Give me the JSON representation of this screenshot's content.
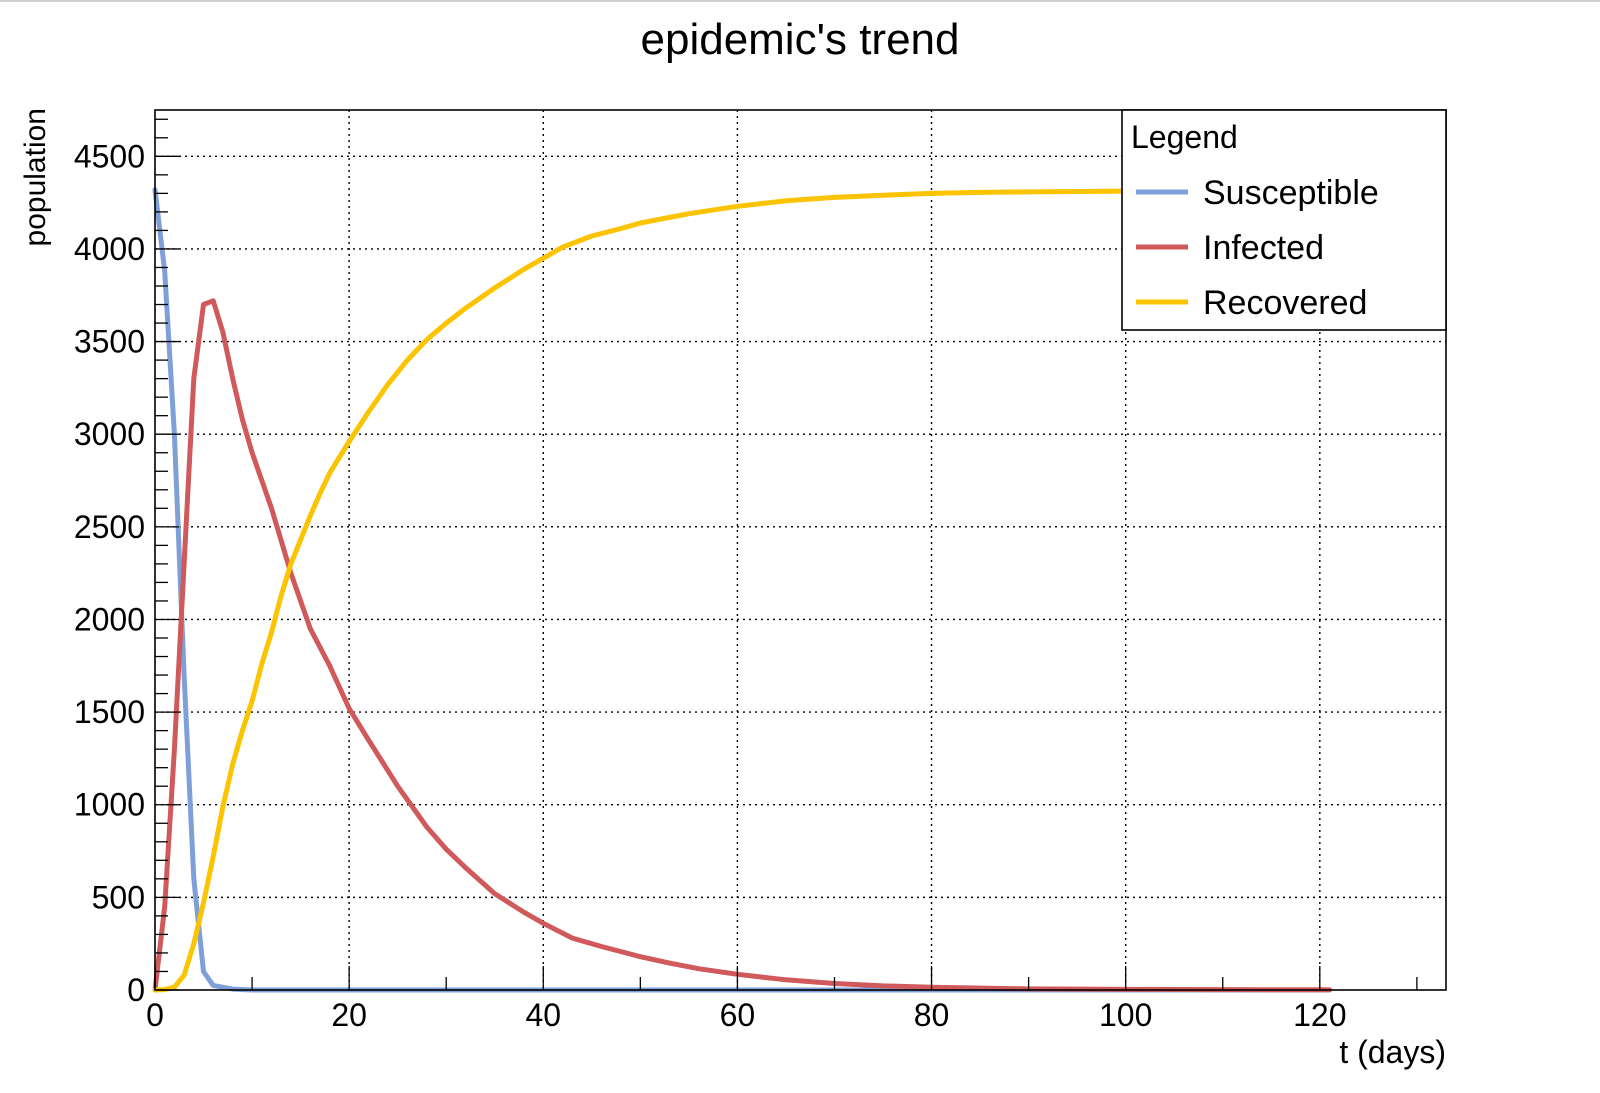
{
  "chart_data": {
    "type": "line",
    "title": "epidemic's trend",
    "xlabel": "t (days)",
    "ylabel": "population",
    "xlim": [
      0,
      133
    ],
    "ylim": [
      0,
      4750
    ],
    "xticks": [
      0,
      20,
      40,
      60,
      80,
      100,
      120
    ],
    "xtick_labels": [
      "0",
      "20",
      "40",
      "60",
      "80",
      "100",
      "120"
    ],
    "yticks": [
      0,
      500,
      1000,
      1500,
      2000,
      2500,
      3000,
      3500,
      4000,
      4500
    ],
    "ytick_labels": [
      "0",
      "500",
      "1000",
      "1500",
      "2000",
      "2500",
      "3000",
      "3500",
      "4000",
      "4500"
    ],
    "grid": true,
    "legend": {
      "title": "Legend",
      "position": "top-right"
    },
    "series": [
      {
        "name": "Susceptible",
        "color": "#7f9fd9",
        "points": [
          [
            0,
            4320
          ],
          [
            1,
            3880
          ],
          [
            2,
            3000
          ],
          [
            3,
            1700
          ],
          [
            4,
            600
          ],
          [
            5,
            100
          ],
          [
            6,
            25
          ],
          [
            8,
            5
          ],
          [
            10,
            0
          ],
          [
            20,
            0
          ],
          [
            40,
            0
          ],
          [
            60,
            0
          ],
          [
            80,
            0
          ],
          [
            100,
            0
          ],
          [
            121,
            0
          ]
        ]
      },
      {
        "name": "Infected",
        "color": "#d0595b",
        "points": [
          [
            0,
            0
          ],
          [
            1,
            450
          ],
          [
            2,
            1300
          ],
          [
            3,
            2300
          ],
          [
            4,
            3300
          ],
          [
            5,
            3700
          ],
          [
            6,
            3720
          ],
          [
            7,
            3550
          ],
          [
            8,
            3300
          ],
          [
            9,
            3080
          ],
          [
            10,
            2900
          ],
          [
            12,
            2600
          ],
          [
            14,
            2250
          ],
          [
            16,
            1950
          ],
          [
            18,
            1750
          ],
          [
            20,
            1520
          ],
          [
            22,
            1350
          ],
          [
            25,
            1100
          ],
          [
            28,
            880
          ],
          [
            30,
            760
          ],
          [
            32,
            660
          ],
          [
            35,
            520
          ],
          [
            38,
            420
          ],
          [
            40,
            360
          ],
          [
            43,
            280
          ],
          [
            46,
            235
          ],
          [
            50,
            180
          ],
          [
            53,
            145
          ],
          [
            56,
            115
          ],
          [
            60,
            85
          ],
          [
            65,
            55
          ],
          [
            70,
            35
          ],
          [
            75,
            22
          ],
          [
            80,
            15
          ],
          [
            90,
            6
          ],
          [
            100,
            3
          ],
          [
            110,
            2
          ],
          [
            121,
            1
          ]
        ]
      },
      {
        "name": "Recovered",
        "color": "#fcc400",
        "points": [
          [
            0,
            0
          ],
          [
            1,
            2
          ],
          [
            2,
            15
          ],
          [
            3,
            80
          ],
          [
            4,
            250
          ],
          [
            5,
            470
          ],
          [
            6,
            720
          ],
          [
            7,
            990
          ],
          [
            8,
            1220
          ],
          [
            9,
            1400
          ],
          [
            10,
            1560
          ],
          [
            11,
            1760
          ],
          [
            12,
            1930
          ],
          [
            13,
            2130
          ],
          [
            14,
            2300
          ],
          [
            15,
            2430
          ],
          [
            16,
            2560
          ],
          [
            17,
            2680
          ],
          [
            18,
            2790
          ],
          [
            20,
            2960
          ],
          [
            22,
            3120
          ],
          [
            24,
            3270
          ],
          [
            26,
            3400
          ],
          [
            28,
            3510
          ],
          [
            30,
            3600
          ],
          [
            32,
            3680
          ],
          [
            35,
            3790
          ],
          [
            38,
            3890
          ],
          [
            40,
            3950
          ],
          [
            42,
            4010
          ],
          [
            45,
            4070
          ],
          [
            48,
            4110
          ],
          [
            50,
            4140
          ],
          [
            55,
            4190
          ],
          [
            60,
            4230
          ],
          [
            65,
            4260
          ],
          [
            70,
            4278
          ],
          [
            75,
            4290
          ],
          [
            80,
            4300
          ],
          [
            85,
            4305
          ],
          [
            90,
            4308
          ],
          [
            100,
            4312
          ],
          [
            110,
            4314
          ],
          [
            121,
            4315
          ]
        ]
      }
    ]
  }
}
